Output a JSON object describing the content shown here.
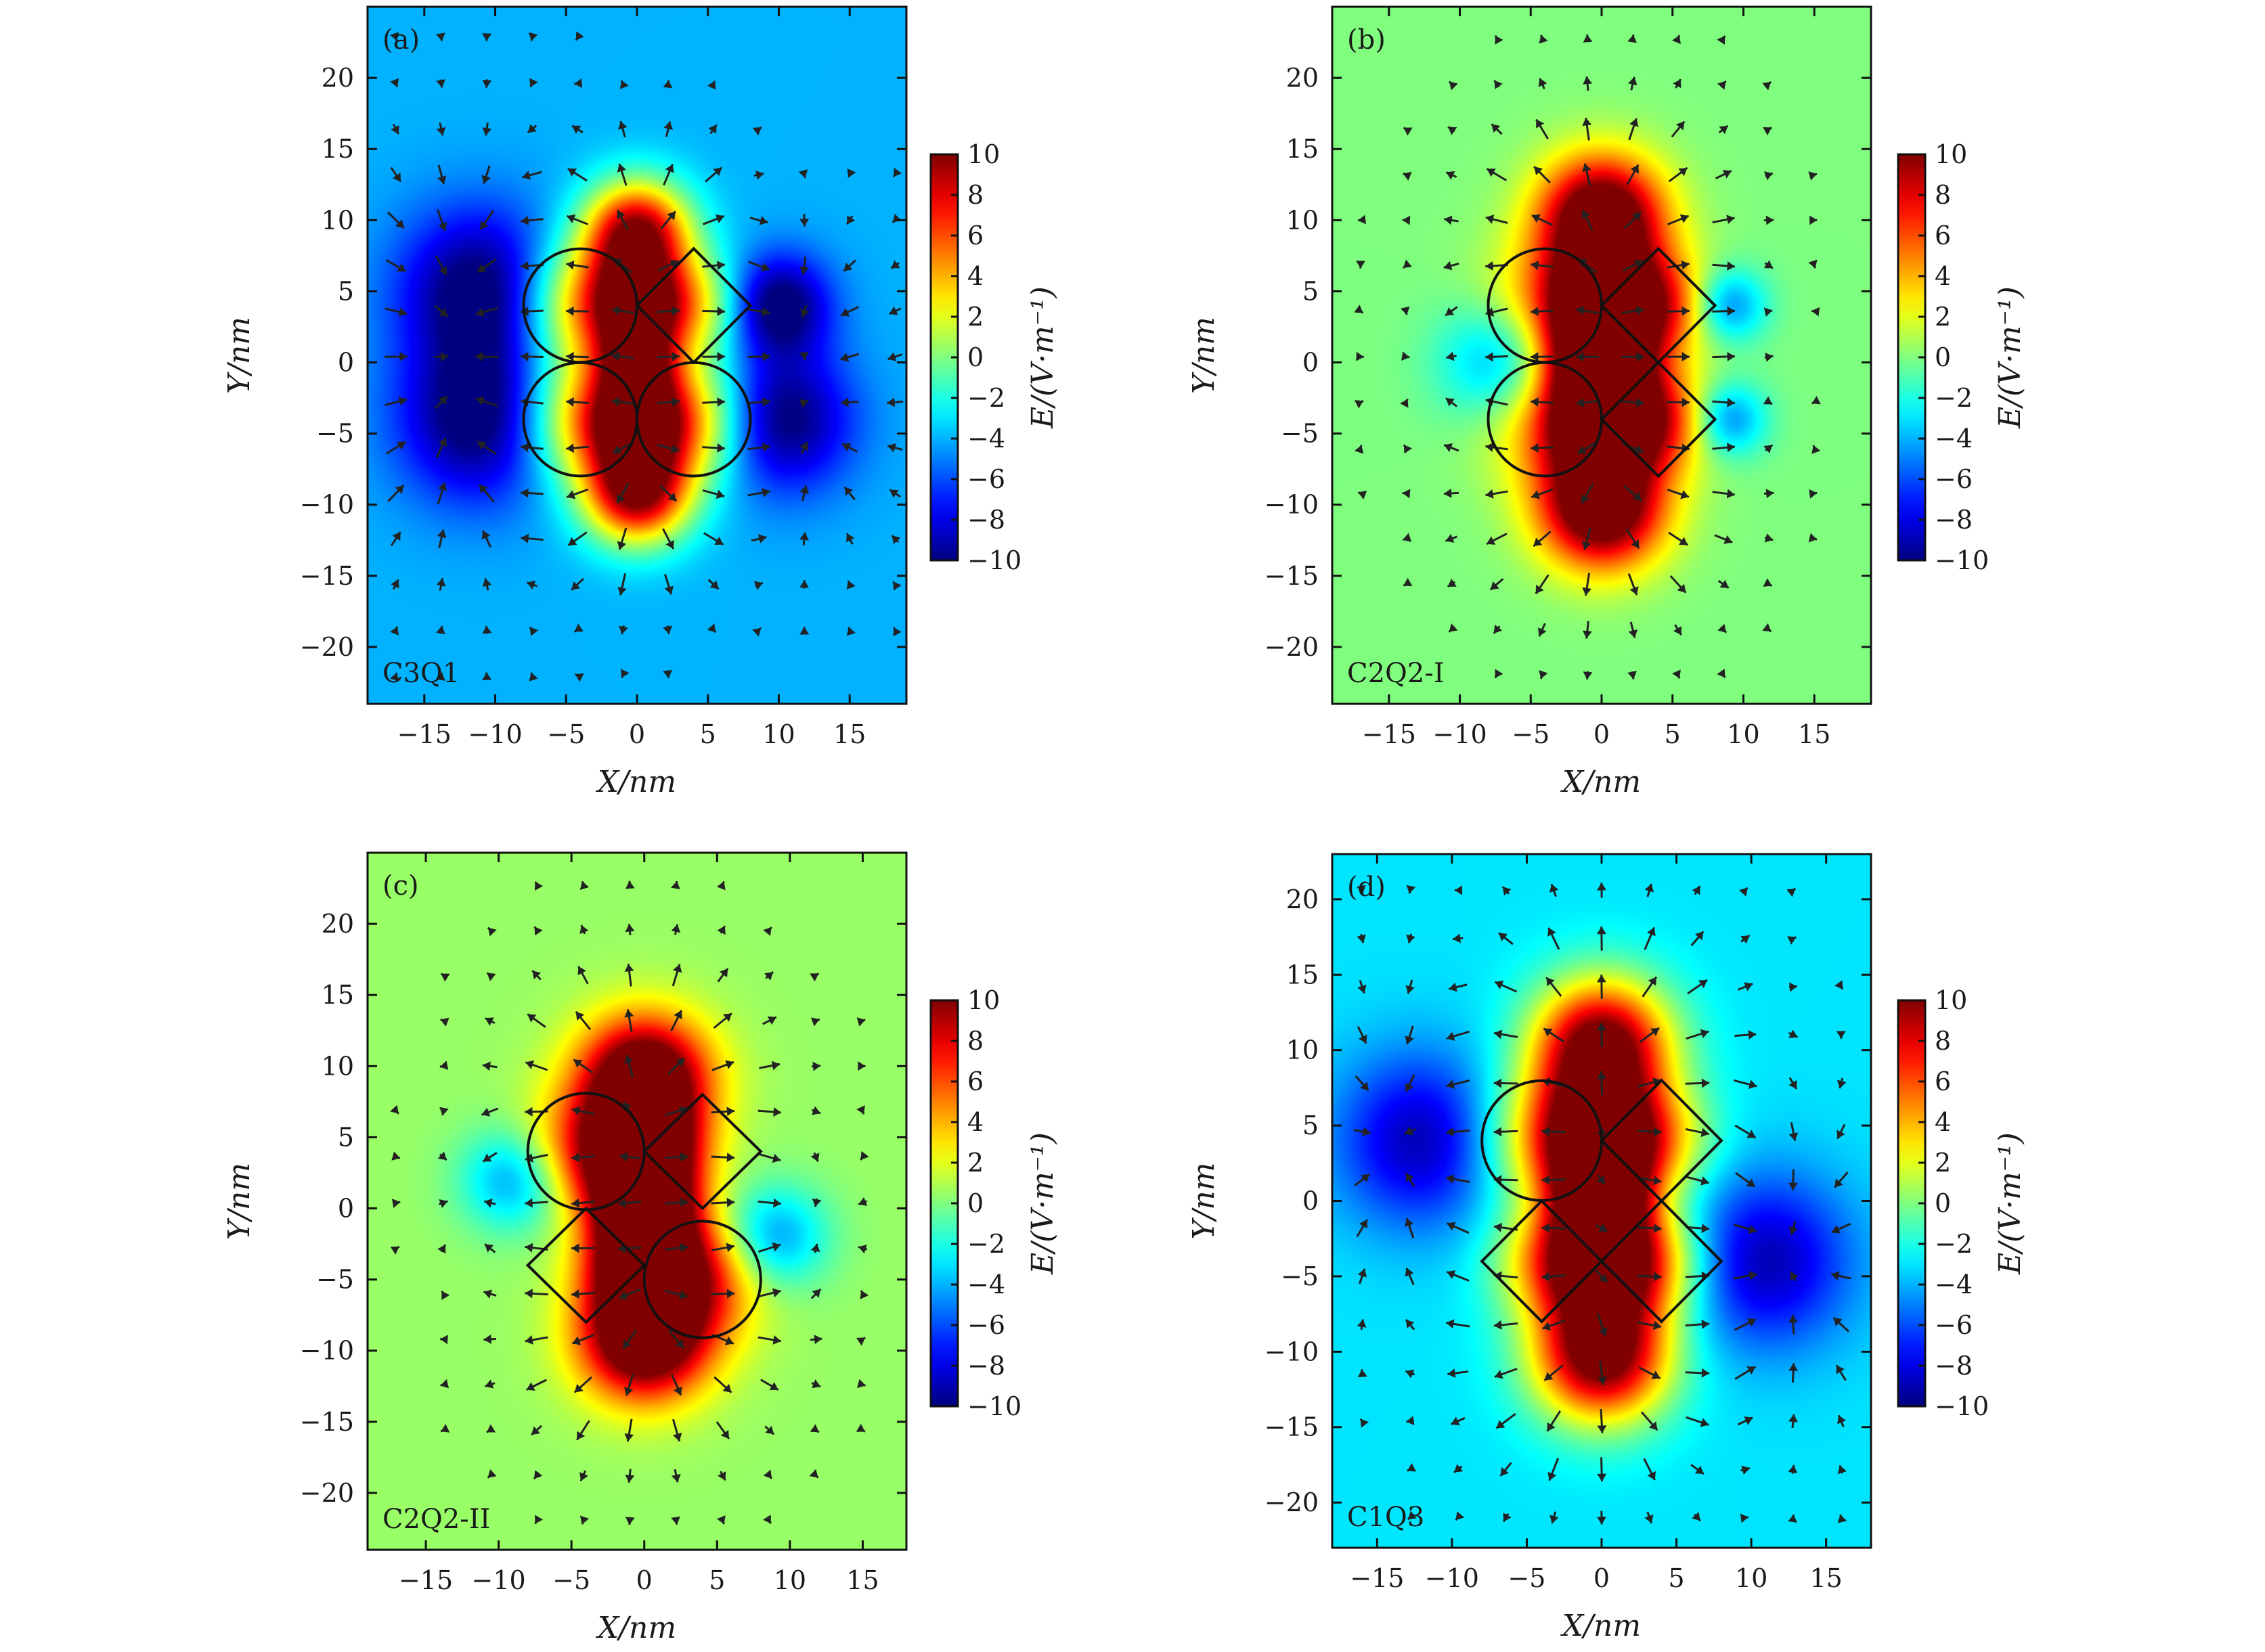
{
  "figure": {
    "colors": {
      "scale": [
        "#00007f",
        "#0000ff",
        "#007fff",
        "#00ffff",
        "#7fff7f",
        "#ffff00",
        "#ff7f00",
        "#ff0000"
      ],
      "outline": "#111111",
      "arrow": "#222222"
    }
  },
  "chart_data": [
    {
      "type": "heatmap",
      "panel_label": "(a)",
      "config_name": "C3Q1",
      "xlabel": "X/nm",
      "ylabel": "Y/nm",
      "xlim": [
        -19,
        19
      ],
      "ylim": [
        -24,
        25
      ],
      "xticks": [
        "−15",
        "−10",
        "−5",
        "0",
        "5",
        "10",
        "15"
      ],
      "xtick_values": [
        -15,
        -10,
        -5,
        0,
        5,
        10,
        15
      ],
      "yticks": [
        "20",
        "15",
        "10",
        "5",
        "0",
        "−5",
        "−10",
        "−15",
        "−20"
      ],
      "ytick_values": [
        20,
        15,
        10,
        5,
        0,
        -5,
        -10,
        -15,
        -20
      ],
      "background_value": -4,
      "colorbar": {
        "label": "E/(V·m⁻¹)",
        "range": [
          -10,
          10
        ],
        "ticks": [
          "10",
          "8",
          "6",
          "4",
          "2",
          "0",
          "−2",
          "−4",
          "−6",
          "−8",
          "−10"
        ],
        "tick_values": [
          10,
          8,
          6,
          4,
          2,
          0,
          -2,
          -4,
          -6,
          -8,
          -10
        ]
      },
      "circles": [
        {
          "cx": -4,
          "cy": 4,
          "r": 4
        },
        {
          "cx": -4,
          "cy": -4,
          "r": 4
        },
        {
          "cx": 4,
          "cy": -4,
          "r": 4
        }
      ],
      "squares": [
        {
          "cx": 4,
          "cy": 4,
          "half_diag": 4
        }
      ],
      "field_sources": [
        {
          "x": 0,
          "y": 9,
          "v": 14,
          "s": 2.6
        },
        {
          "x": 0,
          "y": -9,
          "v": 14,
          "s": 2.6
        },
        {
          "x": 0,
          "y": 4,
          "v": 12,
          "s": 2.2
        },
        {
          "x": 0,
          "y": -4,
          "v": 12,
          "s": 2.2
        },
        {
          "x": 0,
          "y": 0,
          "v": 10,
          "s": 2.0
        },
        {
          "x": -4,
          "y": 4,
          "v": 8,
          "s": 3.2
        },
        {
          "x": -4,
          "y": -4,
          "v": 8,
          "s": 3.2
        },
        {
          "x": 4,
          "y": -4,
          "v": 8,
          "s": 3.2
        },
        {
          "x": 4,
          "y": 4,
          "v": 6,
          "s": 2.6
        },
        {
          "x": -11,
          "y": 5,
          "v": -7,
          "s": 4.0
        },
        {
          "x": -11,
          "y": -4,
          "v": -7,
          "s": 4.0
        },
        {
          "x": 10,
          "y": 4,
          "v": -7,
          "s": 2.5
        },
        {
          "x": 10,
          "y": -4,
          "v": -7,
          "s": 3.5
        }
      ]
    },
    {
      "type": "heatmap",
      "panel_label": "(b)",
      "config_name": "C2Q2-I",
      "xlabel": "X/nm",
      "ylabel": "Y/nm",
      "xlim": [
        -19,
        19
      ],
      "ylim": [
        -24,
        25
      ],
      "xticks": [
        "−15",
        "−10",
        "−5",
        "0",
        "5",
        "10",
        "15"
      ],
      "xtick_values": [
        -15,
        -10,
        -5,
        0,
        5,
        10,
        15
      ],
      "yticks": [
        "20",
        "15",
        "10",
        "5",
        "0",
        "−5",
        "−10",
        "−15",
        "−20"
      ],
      "ytick_values": [
        20,
        15,
        10,
        5,
        0,
        -5,
        -10,
        -15,
        -20
      ],
      "background_value": 0,
      "colorbar": {
        "label": "E/(V·m⁻¹)",
        "range": [
          -10,
          10
        ],
        "ticks": [
          "10",
          "8",
          "6",
          "4",
          "2",
          "0",
          "−2",
          "−4",
          "−6",
          "−8",
          "−10"
        ],
        "tick_values": [
          10,
          8,
          6,
          4,
          2,
          0,
          -2,
          -4,
          -6,
          -8,
          -10
        ]
      },
      "circles": [
        {
          "cx": -4,
          "cy": 4,
          "r": 4
        },
        {
          "cx": -4,
          "cy": -4,
          "r": 4
        }
      ],
      "squares": [
        {
          "cx": 4,
          "cy": 4,
          "half_diag": 4
        },
        {
          "cx": 4,
          "cy": -4,
          "half_diag": 4
        }
      ],
      "field_sources": [
        {
          "x": 0,
          "y": 10,
          "v": 14,
          "s": 3.0
        },
        {
          "x": 0,
          "y": -10,
          "v": 14,
          "s": 3.0
        },
        {
          "x": 0,
          "y": 4,
          "v": 13,
          "s": 2.6
        },
        {
          "x": 0,
          "y": -4,
          "v": 13,
          "s": 2.6
        },
        {
          "x": 0,
          "y": 0,
          "v": 12,
          "s": 2.4
        },
        {
          "x": -4,
          "y": 4,
          "v": 4,
          "s": 3.2
        },
        {
          "x": -4,
          "y": -4,
          "v": 4,
          "s": 3.2
        },
        {
          "x": 4,
          "y": 4,
          "v": 6,
          "s": 2.6
        },
        {
          "x": 4,
          "y": -4,
          "v": 6,
          "s": 2.6
        },
        {
          "x": -7,
          "y": 0,
          "v": -5,
          "s": 3.0
        },
        {
          "x": 9,
          "y": 4,
          "v": -5,
          "s": 1.8
        },
        {
          "x": 9,
          "y": -4,
          "v": -5,
          "s": 1.8
        }
      ]
    },
    {
      "type": "heatmap",
      "panel_label": "(c)",
      "config_name": "C2Q2-II",
      "xlabel": "X/nm",
      "ylabel": "Y/nm",
      "xlim": [
        -19,
        18
      ],
      "ylim": [
        -24,
        25
      ],
      "xticks": [
        "−15",
        "−10",
        "−5",
        "0",
        "5",
        "10",
        "15"
      ],
      "xtick_values": [
        -15,
        -10,
        -5,
        0,
        5,
        10,
        15
      ],
      "yticks": [
        "20",
        "15",
        "10",
        "5",
        "0",
        "−5",
        "−10",
        "−15",
        "−20"
      ],
      "ytick_values": [
        20,
        15,
        10,
        5,
        0,
        -5,
        -10,
        -15,
        -20
      ],
      "background_value": 0.5,
      "colorbar": {
        "label": "E/(V·m⁻¹)",
        "range": [
          -10,
          10
        ],
        "ticks": [
          "10",
          "8",
          "6",
          "4",
          "2",
          "0",
          "−2",
          "−4",
          "−6",
          "−8",
          "−10"
        ],
        "tick_values": [
          10,
          8,
          6,
          4,
          2,
          0,
          -2,
          -4,
          -6,
          -8,
          -10
        ]
      },
      "circles": [
        {
          "cx": -4,
          "cy": 4,
          "r": 4
        },
        {
          "cx": 4,
          "cy": -5,
          "r": 4
        }
      ],
      "squares": [
        {
          "cx": 4,
          "cy": 4,
          "half_diag": 4
        },
        {
          "cx": -4,
          "cy": -4,
          "half_diag": 4
        }
      ],
      "field_sources": [
        {
          "x": 0,
          "y": 9,
          "v": 14,
          "s": 3.0
        },
        {
          "x": 0,
          "y": -9,
          "v": 14,
          "s": 3.0
        },
        {
          "x": 0,
          "y": 4,
          "v": 13,
          "s": 2.6
        },
        {
          "x": 0,
          "y": -4,
          "v": 13,
          "s": 2.6
        },
        {
          "x": 0,
          "y": 0,
          "v": 12,
          "s": 2.4
        },
        {
          "x": -4,
          "y": 4,
          "v": 5,
          "s": 3.0
        },
        {
          "x": 4,
          "y": -5,
          "v": 5,
          "s": 3.0
        },
        {
          "x": -9,
          "y": 2,
          "v": -5,
          "s": 2.5
        },
        {
          "x": 9,
          "y": -2,
          "v": -5,
          "s": 2.5
        }
      ]
    },
    {
      "type": "heatmap",
      "panel_label": "(d)",
      "config_name": "C1Q3",
      "xlabel": "X/nm",
      "ylabel": "Y/nm",
      "xlim": [
        -18,
        18
      ],
      "ylim": [
        -23,
        23
      ],
      "xticks": [
        "−15",
        "−10",
        "−5",
        "0",
        "5",
        "10",
        "15"
      ],
      "xtick_values": [
        -15,
        -10,
        -5,
        0,
        5,
        10,
        15
      ],
      "yticks": [
        "20",
        "15",
        "10",
        "5",
        "0",
        "−5",
        "−10",
        "−15",
        "−20"
      ],
      "ytick_values": [
        20,
        15,
        10,
        5,
        0,
        -5,
        -10,
        -15,
        -20
      ],
      "background_value": -3,
      "colorbar": {
        "label": "E/(V·m⁻¹)",
        "range": [
          -10,
          10
        ],
        "ticks": [
          "10",
          "8",
          "6",
          "4",
          "2",
          "0",
          "−2",
          "−4",
          "−6",
          "−8",
          "−10"
        ],
        "tick_values": [
          10,
          8,
          6,
          4,
          2,
          0,
          -2,
          -4,
          -6,
          -8,
          -10
        ]
      },
      "circles": [
        {
          "cx": -4,
          "cy": 4,
          "r": 4
        }
      ],
      "squares": [
        {
          "cx": 4,
          "cy": 4,
          "half_diag": 4
        },
        {
          "cx": -4,
          "cy": -4,
          "half_diag": 4
        },
        {
          "cx": 4,
          "cy": -4,
          "half_diag": 4
        }
      ],
      "field_sources": [
        {
          "x": 0,
          "y": 10,
          "v": 15,
          "s": 3.2
        },
        {
          "x": 0,
          "y": -10,
          "v": 15,
          "s": 3.2
        },
        {
          "x": 0,
          "y": 4,
          "v": 13,
          "s": 2.6
        },
        {
          "x": 0,
          "y": -4,
          "v": 13,
          "s": 2.6
        },
        {
          "x": 0,
          "y": 0,
          "v": 12,
          "s": 2.4
        },
        {
          "x": -4,
          "y": 4,
          "v": 6,
          "s": 3.2
        },
        {
          "x": 4,
          "y": 4,
          "v": 5,
          "s": 2.6
        },
        {
          "x": -4,
          "y": -4,
          "v": 5,
          "s": 2.6
        },
        {
          "x": 4,
          "y": -4,
          "v": 5,
          "s": 2.6
        },
        {
          "x": -12,
          "y": 4,
          "v": -6,
          "s": 4.0
        },
        {
          "x": 11,
          "y": -4,
          "v": -6,
          "s": 4.0
        }
      ]
    }
  ]
}
